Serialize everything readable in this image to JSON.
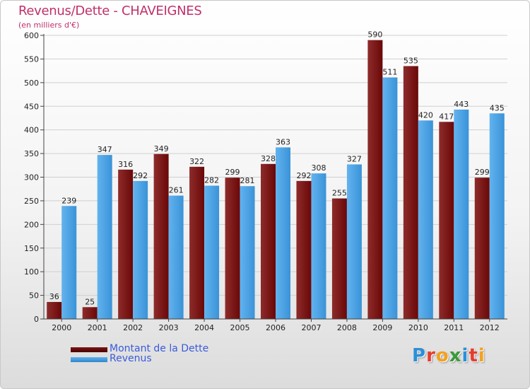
{
  "header": {
    "title": "Revenus/Dette - CHAVEIGNES",
    "subtitle": "(en milliers d'€)"
  },
  "legend": [
    {
      "label": "Montant de la Dette",
      "color": "#6b0a0a"
    },
    {
      "label": "Revenus",
      "color": "#3a9de0"
    }
  ],
  "logo": {
    "text": "Proxiti",
    "icon": "proxiti-logo"
  },
  "colors": {
    "dette_top": "#9a3a3a",
    "dette_bottom": "#5a0000",
    "revenus_top": "#6db9f0",
    "revenus_bottom": "#2f86cc",
    "grid": "#cfcfcf",
    "axis": "#444444",
    "text": "#222222"
  },
  "chart_data": {
    "type": "bar",
    "title": "Revenus/Dette - CHAVEIGNES",
    "subtitle": "(en milliers d'€)",
    "categories": [
      "2000",
      "2001",
      "2002",
      "2003",
      "2004",
      "2005",
      "2006",
      "2007",
      "2008",
      "2009",
      "2010",
      "2011",
      "2012"
    ],
    "series": [
      {
        "name": "Montant de la Dette",
        "values": [
          36,
          25,
          316,
          349,
          322,
          299,
          328,
          292,
          255,
          590,
          535,
          417,
          299
        ]
      },
      {
        "name": "Revenus",
        "values": [
          239,
          347,
          292,
          261,
          282,
          281,
          363,
          308,
          327,
          511,
          420,
          443,
          435
        ]
      }
    ],
    "ylim": [
      0,
      600
    ],
    "yticks": [
      0,
      50,
      100,
      150,
      200,
      250,
      300,
      350,
      400,
      450,
      500,
      550,
      600
    ],
    "grid": true,
    "legend_position": "bottom-left",
    "data_labels": true
  }
}
